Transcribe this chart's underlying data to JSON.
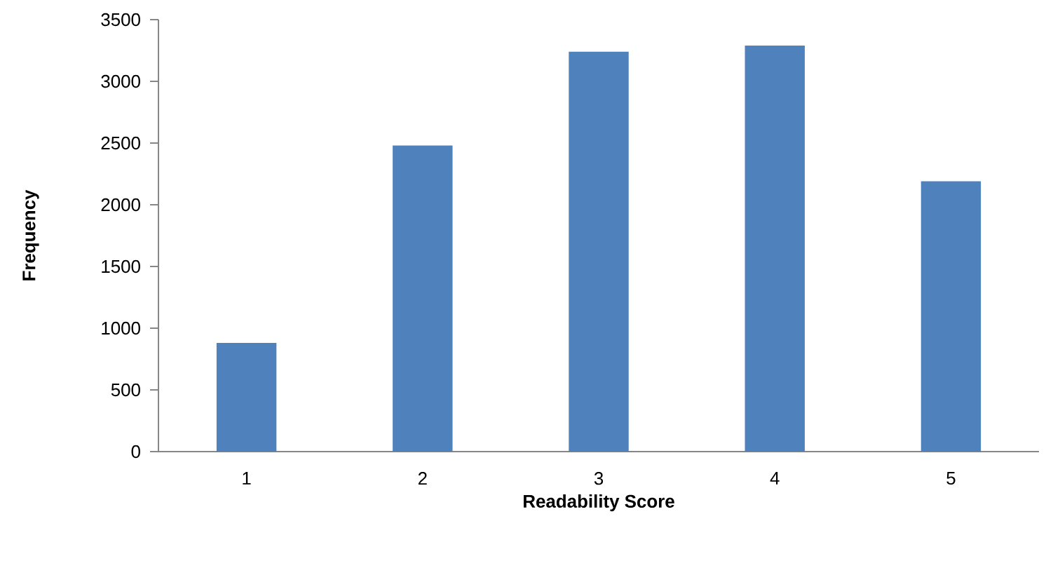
{
  "chart_data": {
    "type": "bar",
    "xlabel": "Readability Score",
    "ylabel": "Frequency",
    "categories": [
      "1",
      "2",
      "3",
      "4",
      "5"
    ],
    "values": [
      880,
      2480,
      3240,
      3290,
      2190
    ],
    "color": "#4f81bd",
    "ylim": [
      0,
      3500
    ],
    "yticks": [
      0,
      500,
      1000,
      1500,
      2000,
      2500,
      3000,
      3500
    ],
    "grid": false
  }
}
